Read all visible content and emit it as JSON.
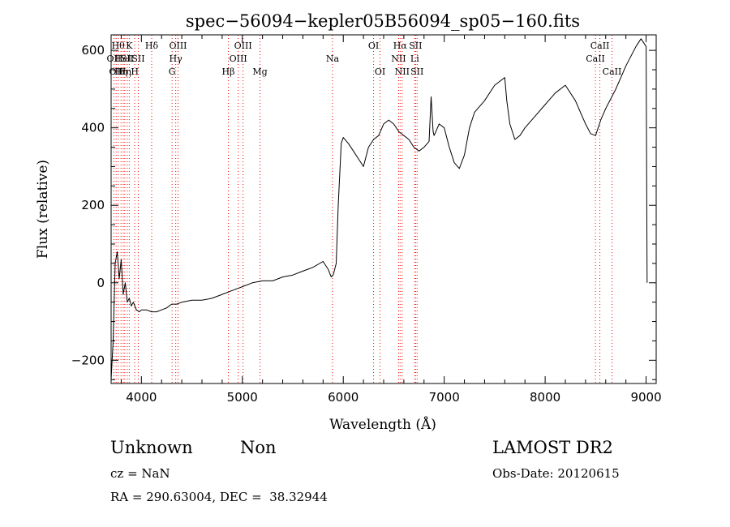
{
  "chart_data": {
    "type": "line",
    "title": "spec−56094−kepler05B56094_sp05−160.fits",
    "xlabel": "Wavelength (Å)",
    "ylabel": "Flux (relative)",
    "xlim": [
      3700,
      9100
    ],
    "ylim": [
      -260,
      640
    ],
    "xticks": [
      4000,
      5000,
      6000,
      7000,
      8000,
      9000
    ],
    "yticks": [
      -200,
      0,
      200,
      400,
      600
    ],
    "xtick_labels": [
      "4000",
      "5000",
      "6000",
      "7000",
      "8000",
      "9000"
    ],
    "ytick_labels": [
      "−200",
      "0",
      "200",
      "400",
      "600"
    ],
    "line_color": "#000000",
    "marker_color": "#ff0000",
    "series": [
      {
        "x": [
          3700,
          3720,
          3740,
          3760,
          3780,
          3800,
          3820,
          3840,
          3860,
          3880,
          3900,
          3920,
          3950,
          3980,
          4000,
          4050,
          4100,
          4150,
          4200,
          4250,
          4300,
          4350,
          4400,
          4500,
          4600,
          4700,
          4800,
          4900,
          5000,
          5100,
          5200,
          5300,
          5400,
          5500,
          5600,
          5700,
          5800,
          5850,
          5880,
          5900,
          5930,
          5950,
          5980,
          6000,
          6050,
          6100,
          6150,
          6200,
          6250,
          6300,
          6350,
          6400,
          6450,
          6500,
          6550,
          6600,
          6650,
          6700,
          6750,
          6800,
          6850,
          6870,
          6890,
          6900,
          6950,
          7000,
          7050,
          7100,
          7150,
          7200,
          7250,
          7300,
          7400,
          7500,
          7600,
          7620,
          7650,
          7700,
          7750,
          7800,
          7900,
          8000,
          8100,
          8200,
          8300,
          8400,
          8450,
          8500,
          8550,
          8600,
          8700,
          8800,
          8900,
          8950,
          9000,
          9010
        ],
        "y": [
          -250,
          -150,
          50,
          80,
          10,
          60,
          -30,
          0,
          -50,
          -40,
          -60,
          -50,
          -70,
          -75,
          -70,
          -70,
          -75,
          -75,
          -70,
          -65,
          -55,
          -55,
          -50,
          -45,
          -45,
          -40,
          -30,
          -20,
          -10,
          0,
          5,
          5,
          15,
          20,
          30,
          40,
          55,
          35,
          15,
          20,
          50,
          200,
          360,
          375,
          360,
          340,
          320,
          300,
          350,
          370,
          380,
          410,
          420,
          410,
          390,
          380,
          370,
          350,
          340,
          350,
          365,
          480,
          390,
          380,
          410,
          400,
          350,
          310,
          295,
          330,
          400,
          440,
          470,
          510,
          530,
          470,
          410,
          370,
          380,
          400,
          430,
          460,
          490,
          510,
          470,
          410,
          385,
          380,
          420,
          450,
          500,
          560,
          610,
          630,
          610,
          0
        ]
      }
    ],
    "line_markers": [
      {
        "x": 3727,
        "label": "OII",
        "row": 1
      },
      {
        "x": 3750,
        "label": "OII",
        "row": 2
      },
      {
        "x": 3770,
        "label": "Hθ",
        "row": 0
      },
      {
        "x": 3798,
        "label": "Hη",
        "row": 2
      },
      {
        "x": 3820,
        "label": "HeI",
        "row": 1
      },
      {
        "x": 3835,
        "label": "Hη",
        "row": 2
      },
      {
        "x": 3860,
        "label": "SII",
        "row": 1
      },
      {
        "x": 3880,
        "label": "K",
        "row": 0
      },
      {
        "x": 3934,
        "label": "H",
        "row": 2
      },
      {
        "x": 3969,
        "label": "SII",
        "row": 1
      },
      {
        "x": 4102,
        "label": "Hδ",
        "row": 0
      },
      {
        "x": 4304,
        "label": "G",
        "row": 2
      },
      {
        "x": 4340,
        "label": "Hγ",
        "row": 1
      },
      {
        "x": 4363,
        "label": "OIII",
        "row": 0
      },
      {
        "x": 4861,
        "label": "Hβ",
        "row": 2
      },
      {
        "x": 4959,
        "label": "OIII",
        "row": 1
      },
      {
        "x": 5007,
        "label": "OIII",
        "row": 0
      },
      {
        "x": 5175,
        "label": "Mg",
        "row": 2
      },
      {
        "x": 5893,
        "label": "Na",
        "row": 1
      },
      {
        "x": 6300,
        "label": "OI",
        "row": 0
      },
      {
        "x": 6364,
        "label": "OI",
        "row": 2
      },
      {
        "x": 6548,
        "label": "NII",
        "row": 1
      },
      {
        "x": 6563,
        "label": "Hα",
        "row": 0
      },
      {
        "x": 6583,
        "label": "NII",
        "row": 2
      },
      {
        "x": 6708,
        "label": "Li",
        "row": 1
      },
      {
        "x": 6716,
        "label": "SII",
        "row": 0
      },
      {
        "x": 6731,
        "label": "SII",
        "row": 2
      },
      {
        "x": 8498,
        "label": "CaII",
        "row": 1
      },
      {
        "x": 8542,
        "label": "CaII",
        "row": 0
      },
      {
        "x": 8662,
        "label": "CaII",
        "row": 2
      }
    ]
  },
  "info": {
    "class_text": "Unknown",
    "subclass_text": "Non",
    "survey_text": "LAMOST DR2",
    "cz_text": "cz = NaN",
    "obs_date_text": "Obs-Date: 20120615",
    "radec_text": "RA = 290.63004, DEC =  38.32944"
  }
}
